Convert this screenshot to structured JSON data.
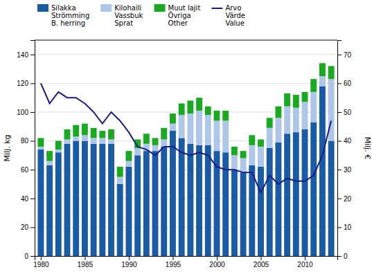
{
  "chart_data": {
    "type": "bar",
    "stacked": true,
    "x": [
      1980,
      1981,
      1982,
      1983,
      1984,
      1985,
      1986,
      1987,
      1988,
      1989,
      1990,
      1991,
      1992,
      1993,
      1994,
      1995,
      1996,
      1997,
      1998,
      1999,
      2000,
      2001,
      2002,
      2003,
      2004,
      2005,
      2006,
      2007,
      2008,
      2009,
      2010,
      2011,
      2012,
      2013
    ],
    "series": [
      {
        "name": "Silakka\nStrömming\nB. herring",
        "color": "#1a5ba6",
        "values": [
          74,
          63,
          72,
          78,
          80,
          80,
          78,
          78,
          78,
          50,
          62,
          70,
          73,
          73,
          76,
          87,
          82,
          78,
          77,
          77,
          73,
          72,
          60,
          58,
          63,
          62,
          75,
          79,
          85,
          86,
          88,
          93,
          118,
          80
        ]
      },
      {
        "name": "Kilohaili\nVassbuk\nSprat",
        "color": "#aec6e8",
        "values": [
          2,
          3,
          2,
          3,
          3,
          4,
          4,
          4,
          3,
          5,
          4,
          5,
          5,
          4,
          5,
          5,
          16,
          21,
          24,
          21,
          21,
          22,
          10,
          10,
          14,
          14,
          14,
          17,
          19,
          17,
          19,
          21,
          7,
          43
        ]
      },
      {
        "name": "Muut lajit\nÖvriga\nOther",
        "color": "#1aaa22",
        "values": [
          6,
          7,
          6,
          7,
          8,
          8,
          7,
          5,
          7,
          7,
          7,
          6,
          7,
          5,
          8,
          7,
          8,
          9,
          9,
          6,
          7,
          7,
          6,
          5,
          7,
          5,
          7,
          8,
          9,
          9,
          7,
          9,
          9,
          9
        ]
      },
      {
        "name": "Arvo\nVärde\nValue",
        "color": "#1a1a88",
        "type": "line",
        "axis": "y2",
        "values": [
          60,
          53,
          57,
          55,
          55,
          53,
          50,
          46,
          50,
          47,
          43,
          38,
          37,
          35,
          38,
          38,
          36,
          35,
          36,
          35,
          31,
          30,
          30,
          29,
          29,
          22,
          28,
          25,
          27,
          26,
          26,
          28,
          35,
          47
        ]
      }
    ],
    "ylabel": "Milj. kg",
    "y2label": "Milj. €",
    "xlim": [
      1979.3,
      2013.7
    ],
    "xticks": [
      1980,
      1985,
      1990,
      1995,
      2000,
      2005,
      2010
    ],
    "ylim": [
      0,
      150
    ],
    "yticks": [
      0,
      20,
      40,
      60,
      80,
      100,
      120,
      140
    ],
    "y2lim": [
      0,
      75
    ],
    "y2ticks": [
      0,
      10,
      20,
      30,
      40,
      50,
      60,
      70
    ],
    "grid": true,
    "legend": "upper left"
  }
}
